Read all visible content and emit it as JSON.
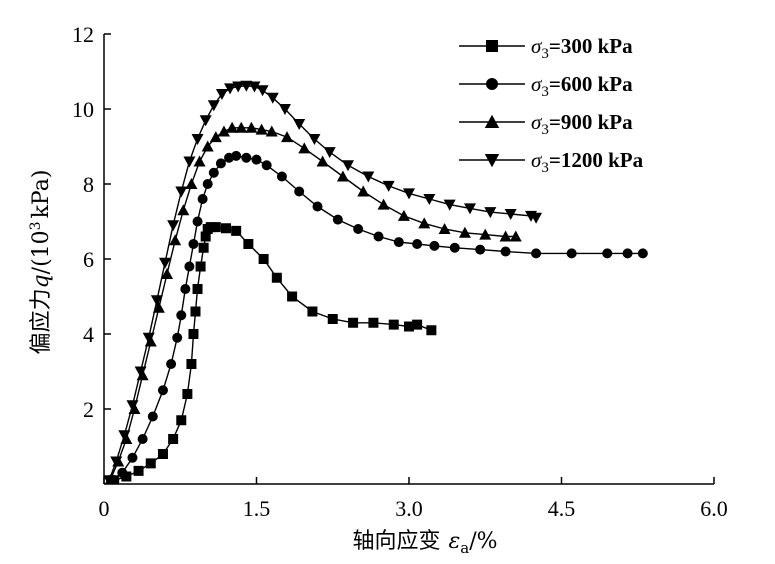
{
  "chart_data": {
    "type": "line",
    "xlabel_text": "轴向应变",
    "xlabel_symbol": "ε",
    "xlabel_sub": "a",
    "xlabel_unit": "/%",
    "ylabel_text": "偏应力",
    "ylabel_symbol": "q",
    "ylabel_unit_pre": "/(10",
    "ylabel_unit_sup": "3",
    "ylabel_unit_post": "kPa)",
    "xlim": [
      0,
      6.0
    ],
    "ylim": [
      0,
      12
    ],
    "x_ticks": [
      0,
      1.5,
      3.0,
      4.5,
      6.0
    ],
    "x_tick_labels": [
      "0",
      "1.5",
      "3.0",
      "4.5",
      "6.0"
    ],
    "y_ticks": [
      2,
      4,
      6,
      8,
      10,
      12
    ],
    "y_tick_labels": [
      "2",
      "4",
      "6",
      "8",
      "10",
      "12"
    ],
    "grid": false,
    "legend_position": "top-right",
    "series": [
      {
        "name": "σ3=300 kPa",
        "legend_symbol": "σ",
        "legend_sub": "3",
        "legend_rest": "=300 kPa",
        "marker": "square",
        "x": [
          0.1,
          0.22,
          0.34,
          0.46,
          0.58,
          0.68,
          0.76,
          0.82,
          0.86,
          0.88,
          0.9,
          0.92,
          0.95,
          0.98,
          1.0,
          1.02,
          1.05,
          1.1,
          1.2,
          1.3,
          1.42,
          1.57,
          1.7,
          1.85,
          2.05,
          2.25,
          2.45,
          2.65,
          2.85,
          3.0,
          3.08,
          3.22
        ],
        "y": [
          0.1,
          0.2,
          0.35,
          0.55,
          0.8,
          1.2,
          1.7,
          2.4,
          3.2,
          4.0,
          4.6,
          5.2,
          5.8,
          6.3,
          6.6,
          6.8,
          6.85,
          6.85,
          6.82,
          6.75,
          6.4,
          6.0,
          5.5,
          5.0,
          4.6,
          4.4,
          4.3,
          4.3,
          4.25,
          4.2,
          4.25,
          4.1
        ]
      },
      {
        "name": "σ3=600 kPa",
        "legend_symbol": "σ",
        "legend_sub": "3",
        "legend_rest": "=600 kPa",
        "marker": "circle",
        "x": [
          0.08,
          0.18,
          0.28,
          0.38,
          0.48,
          0.58,
          0.66,
          0.72,
          0.76,
          0.8,
          0.84,
          0.88,
          0.92,
          0.97,
          1.02,
          1.08,
          1.15,
          1.23,
          1.3,
          1.4,
          1.5,
          1.6,
          1.75,
          1.92,
          2.1,
          2.3,
          2.5,
          2.7,
          2.9,
          3.08,
          3.25,
          3.45,
          3.7,
          3.95,
          4.25,
          4.6,
          4.95,
          5.15,
          5.3
        ],
        "y": [
          0.1,
          0.3,
          0.7,
          1.2,
          1.8,
          2.5,
          3.2,
          3.9,
          4.5,
          5.2,
          5.8,
          6.4,
          7.0,
          7.6,
          8.0,
          8.3,
          8.55,
          8.7,
          8.75,
          8.7,
          8.65,
          8.5,
          8.2,
          7.8,
          7.4,
          7.05,
          6.8,
          6.6,
          6.45,
          6.4,
          6.35,
          6.3,
          6.25,
          6.2,
          6.15,
          6.15,
          6.15,
          6.15,
          6.15
        ]
      },
      {
        "name": "σ3=900 kPa",
        "legend_symbol": "σ",
        "legend_sub": "3",
        "legend_rest": "=900 kPa",
        "marker": "triangle-up",
        "x": [
          0.06,
          0.14,
          0.22,
          0.3,
          0.38,
          0.46,
          0.54,
          0.62,
          0.7,
          0.78,
          0.86,
          0.94,
          1.02,
          1.1,
          1.18,
          1.26,
          1.35,
          1.45,
          1.55,
          1.65,
          1.8,
          1.97,
          2.15,
          2.35,
          2.55,
          2.75,
          2.95,
          3.15,
          3.35,
          3.55,
          3.75,
          3.95,
          4.05
        ],
        "y": [
          0.1,
          0.6,
          1.2,
          2.0,
          2.9,
          3.8,
          4.7,
          5.6,
          6.5,
          7.3,
          8.0,
          8.6,
          9.0,
          9.25,
          9.4,
          9.5,
          9.5,
          9.5,
          9.45,
          9.4,
          9.25,
          8.95,
          8.6,
          8.2,
          7.8,
          7.45,
          7.15,
          6.95,
          6.8,
          6.7,
          6.65,
          6.6,
          6.6
        ]
      },
      {
        "name": "σ3=1200 kPa",
        "legend_symbol": "σ",
        "legend_sub": "3",
        "legend_rest": "=1200 kPa",
        "marker": "triangle-down",
        "x": [
          0.05,
          0.12,
          0.2,
          0.28,
          0.36,
          0.44,
          0.52,
          0.6,
          0.68,
          0.76,
          0.84,
          0.92,
          1.0,
          1.08,
          1.16,
          1.24,
          1.32,
          1.4,
          1.48,
          1.56,
          1.66,
          1.78,
          1.92,
          2.07,
          2.22,
          2.4,
          2.6,
          2.8,
          3.0,
          3.2,
          3.4,
          3.6,
          3.8,
          4.0,
          4.2,
          4.25
        ],
        "y": [
          0.1,
          0.6,
          1.3,
          2.1,
          3.0,
          3.9,
          4.9,
          5.9,
          6.9,
          7.8,
          8.6,
          9.2,
          9.7,
          10.1,
          10.4,
          10.55,
          10.6,
          10.62,
          10.6,
          10.5,
          10.3,
          10.0,
          9.6,
          9.2,
          8.85,
          8.5,
          8.2,
          7.95,
          7.75,
          7.6,
          7.45,
          7.35,
          7.25,
          7.2,
          7.15,
          7.1
        ]
      }
    ]
  }
}
